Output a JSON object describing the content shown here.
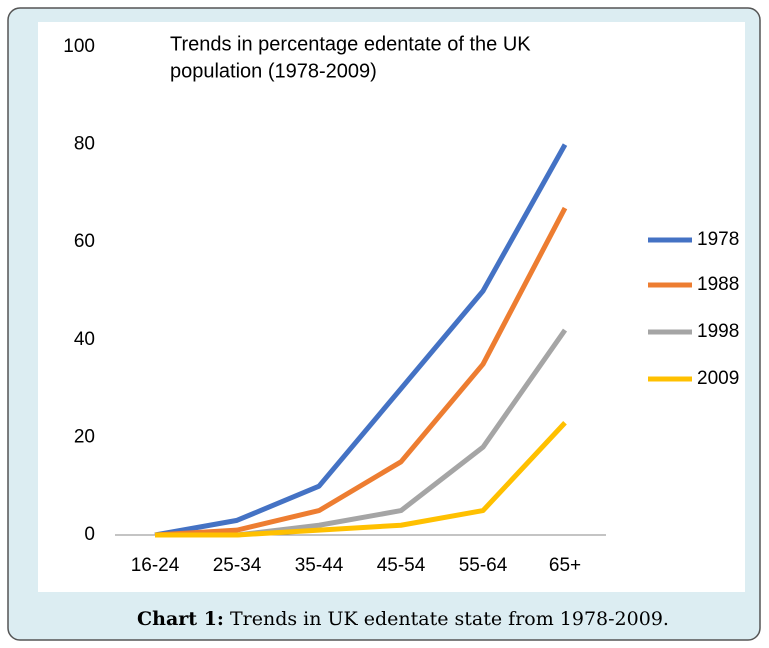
{
  "chart_data": {
    "type": "line",
    "title": [
      "Trends in percentage edentate of the UK",
      "population (1978-2009)"
    ],
    "categories": [
      "16-24",
      "25-34",
      "35-44",
      "45-54",
      "55-64",
      "65+"
    ],
    "series": [
      {
        "name": "1978",
        "color": "#4472c4",
        "values": [
          0,
          3,
          10,
          30,
          50,
          80
        ]
      },
      {
        "name": "1988",
        "color": "#ed7d31",
        "values": [
          0,
          1,
          5,
          15,
          35,
          67
        ]
      },
      {
        "name": "1998",
        "color": "#a5a5a5",
        "values": [
          0,
          0,
          2,
          5,
          18,
          42
        ]
      },
      {
        "name": "2009",
        "color": "#ffc000",
        "values": [
          0,
          0,
          1,
          2,
          5,
          23
        ]
      }
    ],
    "ylim": [
      0,
      100
    ],
    "yticks": [
      0,
      20,
      40,
      60,
      80,
      100
    ],
    "grid": false,
    "legend": "right"
  },
  "caption": {
    "label": "Chart 1:",
    "text": "Trends in UK edentate state from 1978-2009."
  }
}
